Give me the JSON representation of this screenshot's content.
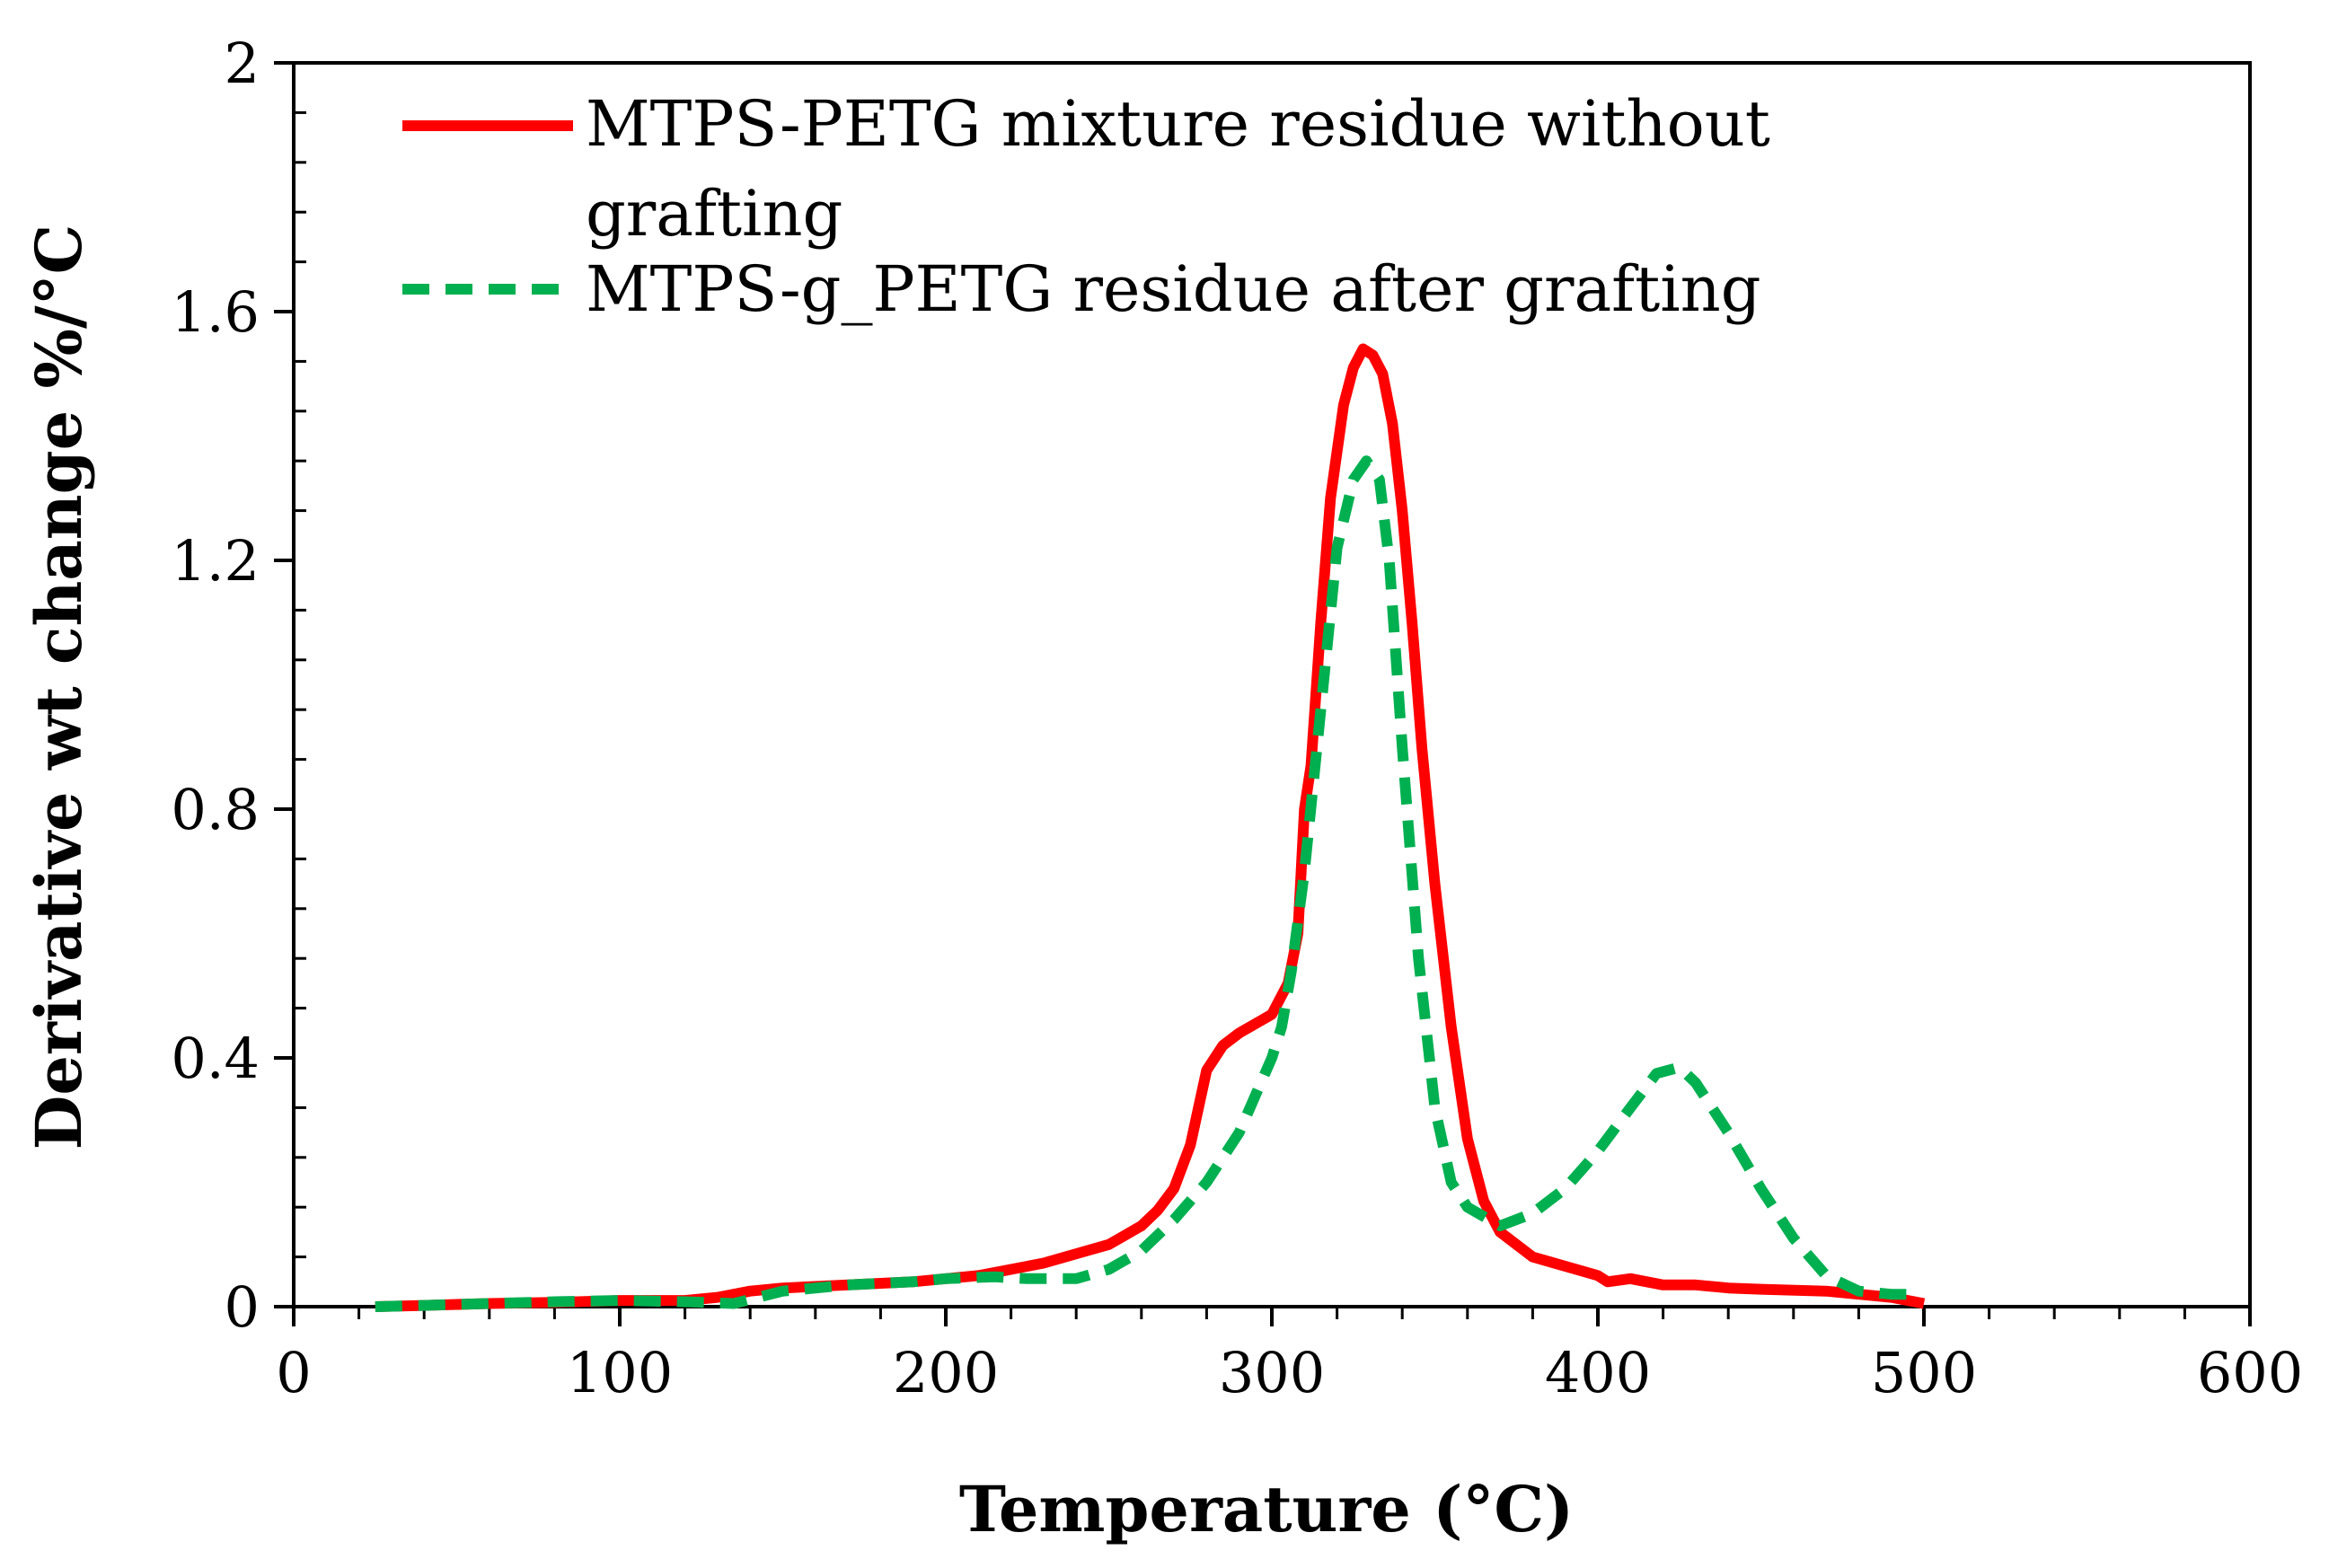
{
  "chart_data": {
    "type": "line",
    "title": "",
    "xlabel": "Temperature (°C)",
    "ylabel": "Derivative wt change %/°C",
    "xlim": [
      0,
      600
    ],
    "ylim": [
      0,
      2
    ],
    "x_ticks": [
      0,
      100,
      200,
      300,
      400,
      500,
      600
    ],
    "y_ticks": [
      0,
      0.4,
      0.8,
      1.2,
      1.6,
      2
    ],
    "x_tick_labels": [
      "0",
      "100",
      "200",
      "300",
      "400",
      "500",
      "600"
    ],
    "y_tick_labels": [
      "0",
      "0.4",
      "0.8",
      "1.2",
      "1.6",
      "2"
    ],
    "grid": false,
    "legend_position": "top-left",
    "series": [
      {
        "name": "MTPS-PETG mixture residue without grafting",
        "legend_line1": "MTPS-PETG mixture residue without",
        "legend_line2": "grafting",
        "color": "#ff0000",
        "style": "solid",
        "points": [
          [
            25,
            0
          ],
          [
            40,
            0.002
          ],
          [
            60,
            0.005
          ],
          [
            80,
            0.007
          ],
          [
            100,
            0.01
          ],
          [
            120,
            0.01
          ],
          [
            130,
            0.015
          ],
          [
            140,
            0.025
          ],
          [
            150,
            0.03
          ],
          [
            170,
            0.035
          ],
          [
            190,
            0.04
          ],
          [
            200,
            0.045
          ],
          [
            210,
            0.05
          ],
          [
            220,
            0.06
          ],
          [
            230,
            0.07
          ],
          [
            240,
            0.085
          ],
          [
            250,
            0.1
          ],
          [
            255,
            0.115
          ],
          [
            260,
            0.13
          ],
          [
            265,
            0.155
          ],
          [
            270,
            0.19
          ],
          [
            275,
            0.26
          ],
          [
            280,
            0.38
          ],
          [
            285,
            0.42
          ],
          [
            290,
            0.44
          ],
          [
            295,
            0.455
          ],
          [
            300,
            0.47
          ],
          [
            305,
            0.52
          ],
          [
            308,
            0.6
          ],
          [
            310,
            0.8
          ],
          [
            312,
            0.87
          ],
          [
            315,
            1.1
          ],
          [
            318,
            1.3
          ],
          [
            322,
            1.45
          ],
          [
            325,
            1.51
          ],
          [
            328,
            1.54
          ],
          [
            331,
            1.53
          ],
          [
            334,
            1.5
          ],
          [
            337,
            1.42
          ],
          [
            340,
            1.28
          ],
          [
            343,
            1.1
          ],
          [
            346,
            0.9
          ],
          [
            350,
            0.68
          ],
          [
            355,
            0.45
          ],
          [
            360,
            0.27
          ],
          [
            365,
            0.17
          ],
          [
            370,
            0.12
          ],
          [
            380,
            0.08
          ],
          [
            390,
            0.065
          ],
          [
            400,
            0.05
          ],
          [
            403,
            0.04
          ],
          [
            410,
            0.045
          ],
          [
            420,
            0.035
          ],
          [
            430,
            0.035
          ],
          [
            440,
            0.03
          ],
          [
            450,
            0.028
          ],
          [
            470,
            0.025
          ],
          [
            490,
            0.015
          ],
          [
            500,
            0.005
          ]
        ]
      },
      {
        "name": "MTPS-g_PETG residue after grafting",
        "legend_line1": "MTPS-g_PETG residue after grafting",
        "legend_line2": "",
        "color": "#00b050",
        "style": "dashed",
        "points": [
          [
            25,
            0
          ],
          [
            40,
            0.002
          ],
          [
            60,
            0.005
          ],
          [
            80,
            0.008
          ],
          [
            100,
            0.01
          ],
          [
            120,
            0.008
          ],
          [
            135,
            0.005
          ],
          [
            150,
            0.025
          ],
          [
            170,
            0.035
          ],
          [
            190,
            0.04
          ],
          [
            200,
            0.045
          ],
          [
            215,
            0.048
          ],
          [
            225,
            0.045
          ],
          [
            240,
            0.045
          ],
          [
            250,
            0.06
          ],
          [
            260,
            0.09
          ],
          [
            270,
            0.14
          ],
          [
            280,
            0.2
          ],
          [
            290,
            0.28
          ],
          [
            295,
            0.34
          ],
          [
            300,
            0.4
          ],
          [
            303,
            0.45
          ],
          [
            306,
            0.54
          ],
          [
            310,
            0.7
          ],
          [
            315,
            0.96
          ],
          [
            320,
            1.22
          ],
          [
            325,
            1.33
          ],
          [
            329,
            1.36
          ],
          [
            333,
            1.33
          ],
          [
            336,
            1.2
          ],
          [
            340,
            0.9
          ],
          [
            345,
            0.56
          ],
          [
            350,
            0.32
          ],
          [
            355,
            0.2
          ],
          [
            360,
            0.16
          ],
          [
            370,
            0.13
          ],
          [
            380,
            0.15
          ],
          [
            390,
            0.19
          ],
          [
            400,
            0.25
          ],
          [
            410,
            0.32
          ],
          [
            418,
            0.375
          ],
          [
            425,
            0.385
          ],
          [
            430,
            0.36
          ],
          [
            440,
            0.28
          ],
          [
            450,
            0.19
          ],
          [
            460,
            0.11
          ],
          [
            470,
            0.05
          ],
          [
            480,
            0.025
          ],
          [
            490,
            0.02
          ],
          [
            495,
            0.02
          ]
        ]
      }
    ]
  }
}
